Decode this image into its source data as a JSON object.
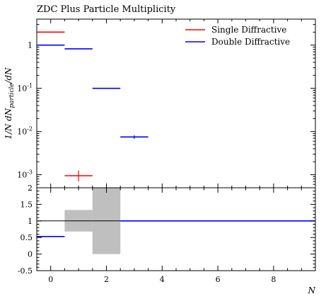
{
  "chart_data": [
    {
      "panel": "main",
      "type": "histogram",
      "title": "ZDC Plus Particle Multiplicity",
      "ylabel_parts": {
        "a": "1/N dN",
        "sub": "particle",
        "b": "/dN"
      },
      "y_scale": "log",
      "xlim": [
        -0.5,
        9.5
      ],
      "ylim": [
        0.0005,
        4
      ],
      "y_ticks": [
        {
          "value": 1,
          "label": "1"
        },
        {
          "value": 0.1,
          "label": "10^-1"
        },
        {
          "value": 0.01,
          "label": "10^-2"
        },
        {
          "value": 0.001,
          "label": "10^-3"
        }
      ],
      "legend_position": "top-right",
      "series": [
        {
          "name": "Single Diffractive",
          "color": "#ff0000",
          "bins": [
            {
              "x_lo": -0.5,
              "x_hi": 0.5,
              "y": 2.0
            },
            {
              "x_lo": 0.5,
              "x_hi": 1.5,
              "y": 0.00095,
              "yerr_lo": 0.00025,
              "yerr_hi": 0.0003
            }
          ]
        },
        {
          "name": "Double Diffractive",
          "color": "#0000ff",
          "bins": [
            {
              "x_lo": -0.5,
              "x_hi": 0.5,
              "y": 1.0
            },
            {
              "x_lo": 0.5,
              "x_hi": 1.5,
              "y": 0.82
            },
            {
              "x_lo": 1.5,
              "x_hi": 2.5,
              "y": 0.1
            },
            {
              "x_lo": 2.5,
              "x_hi": 3.5,
              "y": 0.0075,
              "yerr_lo": 0.0007,
              "yerr_hi": 0.0007
            }
          ]
        }
      ]
    },
    {
      "panel": "ratio",
      "type": "histogram",
      "xlabel": "N",
      "xlim": [
        -0.5,
        9.5
      ],
      "ylim": [
        -0.5,
        2.0
      ],
      "x_ticks": [
        0,
        2,
        4,
        6,
        8
      ],
      "y_ticks": [
        2,
        1.5,
        1,
        0.5,
        0,
        -0.5
      ],
      "reference_line": 1,
      "band_color": "#bfbfbf",
      "bands": [
        {
          "x_lo": 0.5,
          "x_hi": 1.5,
          "y_lo": 0.68,
          "y_hi": 1.33
        },
        {
          "x_lo": 1.5,
          "x_hi": 2.5,
          "y_lo": 0.0,
          "y_hi": 2.0
        }
      ],
      "series": [
        {
          "name": "Double Diffractive",
          "color": "#0000ff",
          "bins": [
            {
              "x_lo": -0.5,
              "x_hi": 0.5,
              "y": 0.53
            },
            {
              "x_lo": 2.5,
              "x_hi": 9.5,
              "y": 1.0
            }
          ]
        }
      ]
    }
  ]
}
